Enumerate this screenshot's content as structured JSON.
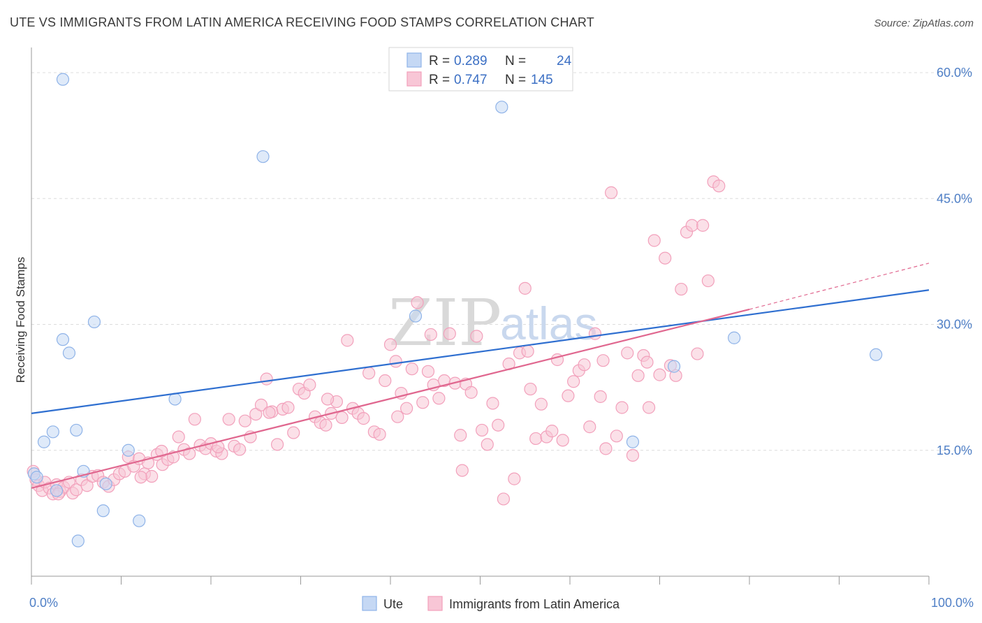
{
  "chart_data": {
    "type": "scatter",
    "title": "UTE VS IMMIGRANTS FROM LATIN AMERICA RECEIVING FOOD STAMPS CORRELATION CHART",
    "source": "Source: ZipAtlas.com",
    "ylabel": "Receiving Food Stamps",
    "xlim": [
      0,
      100
    ],
    "ylim": [
      0,
      63
    ],
    "y_ticks": [
      {
        "value": 15,
        "label": "15.0%"
      },
      {
        "value": 30,
        "label": "30.0%"
      },
      {
        "value": 45,
        "label": "45.0%"
      },
      {
        "value": 60,
        "label": "60.0%"
      }
    ],
    "x_tick_labels": {
      "min": "0.0%",
      "max": "100.0%"
    },
    "x_minor_ticks": [
      0,
      10,
      20,
      30,
      40,
      50,
      60,
      70,
      80,
      90,
      100
    ],
    "watermark": {
      "zip": "ZIP",
      "atlas": "atlas"
    },
    "legend_top": [
      {
        "r_label": "R = ",
        "r_value": "0.289",
        "n_label": "N = ",
        "n_value": "24"
      },
      {
        "r_label": "R = ",
        "r_value": "0.747",
        "n_label": "N = ",
        "n_value": "145"
      }
    ],
    "series": [
      {
        "name": "Ute",
        "color": "#8fb3e8",
        "fill": "#c5d8f4",
        "line_color": "#2f6fd0",
        "trend": {
          "x0": 0,
          "y0": 19.4,
          "x1": 100,
          "y1": 34.1
        },
        "points": [
          [
            3.5,
            59.2
          ],
          [
            52.4,
            55.9
          ],
          [
            25.8,
            50.0
          ],
          [
            3.5,
            28.2
          ],
          [
            7.0,
            30.3
          ],
          [
            4.2,
            26.6
          ],
          [
            42.8,
            31.0
          ],
          [
            94.1,
            26.4
          ],
          [
            78.3,
            28.4
          ],
          [
            71.6,
            25.0
          ],
          [
            16.0,
            21.1
          ],
          [
            2.4,
            17.2
          ],
          [
            1.4,
            16.0
          ],
          [
            5.0,
            17.4
          ],
          [
            10.8,
            15.0
          ],
          [
            67.0,
            16.0
          ],
          [
            0.3,
            12.2
          ],
          [
            0.6,
            11.8
          ],
          [
            2.8,
            10.2
          ],
          [
            5.8,
            12.5
          ],
          [
            8.3,
            11.0
          ],
          [
            8.0,
            7.8
          ],
          [
            12.0,
            6.6
          ],
          [
            5.2,
            4.2
          ]
        ]
      },
      {
        "name": "Immigrants from Latin America",
        "color": "#f2a0bb",
        "fill": "#f8c6d6",
        "line_color": "#e0678f",
        "trend": {
          "x0": 0,
          "y0": 10.5,
          "x1": 80,
          "y1": 31.8
        },
        "trend_dashed": {
          "x0": 80,
          "y0": 31.8,
          "x1": 100,
          "y1": 37.3
        },
        "points": [
          [
            0.2,
            12.5
          ],
          [
            0.5,
            11.5
          ],
          [
            0.8,
            10.8
          ],
          [
            1.2,
            10.2
          ],
          [
            1.5,
            11.2
          ],
          [
            2.0,
            10.5
          ],
          [
            2.4,
            9.8
          ],
          [
            2.8,
            10.9
          ],
          [
            3.2,
            10.1
          ],
          [
            3.6,
            10.6
          ],
          [
            4.2,
            11.2
          ],
          [
            4.6,
            9.9
          ],
          [
            5.0,
            10.3
          ],
          [
            5.6,
            11.5
          ],
          [
            6.2,
            10.8
          ],
          [
            6.8,
            11.9
          ],
          [
            7.4,
            12.0
          ],
          [
            8.0,
            11.2
          ],
          [
            8.6,
            10.7
          ],
          [
            9.2,
            11.5
          ],
          [
            9.8,
            12.2
          ],
          [
            10.4,
            12.5
          ],
          [
            10.8,
            14.2
          ],
          [
            11.4,
            13.1
          ],
          [
            12.0,
            14.0
          ],
          [
            12.6,
            12.2
          ],
          [
            13.0,
            13.5
          ],
          [
            13.4,
            11.9
          ],
          [
            14.0,
            14.5
          ],
          [
            14.6,
            13.3
          ],
          [
            15.2,
            13.9
          ],
          [
            15.8,
            14.2
          ],
          [
            16.4,
            16.6
          ],
          [
            17.0,
            15.1
          ],
          [
            17.6,
            14.6
          ],
          [
            18.2,
            18.7
          ],
          [
            18.8,
            15.6
          ],
          [
            19.4,
            15.2
          ],
          [
            20.0,
            15.8
          ],
          [
            20.6,
            14.9
          ],
          [
            21.2,
            14.6
          ],
          [
            22.0,
            18.7
          ],
          [
            22.6,
            15.5
          ],
          [
            23.2,
            15.1
          ],
          [
            23.8,
            18.5
          ],
          [
            24.4,
            16.6
          ],
          [
            25.0,
            19.3
          ],
          [
            25.6,
            20.4
          ],
          [
            26.2,
            23.5
          ],
          [
            26.8,
            19.6
          ],
          [
            27.4,
            15.7
          ],
          [
            28.0,
            19.9
          ],
          [
            28.6,
            20.1
          ],
          [
            29.2,
            17.1
          ],
          [
            29.8,
            22.3
          ],
          [
            30.4,
            21.8
          ],
          [
            31.0,
            22.8
          ],
          [
            31.6,
            19.0
          ],
          [
            32.2,
            18.3
          ],
          [
            32.8,
            18.0
          ],
          [
            33.4,
            19.4
          ],
          [
            34.0,
            20.8
          ],
          [
            34.6,
            18.9
          ],
          [
            35.2,
            28.1
          ],
          [
            35.8,
            20.0
          ],
          [
            36.4,
            19.4
          ],
          [
            37.0,
            18.8
          ],
          [
            37.6,
            24.2
          ],
          [
            38.2,
            17.2
          ],
          [
            38.8,
            16.9
          ],
          [
            39.4,
            23.3
          ],
          [
            40.0,
            27.6
          ],
          [
            40.6,
            25.6
          ],
          [
            41.2,
            21.8
          ],
          [
            41.8,
            20.0
          ],
          [
            42.4,
            24.7
          ],
          [
            43.0,
            32.6
          ],
          [
            43.6,
            20.7
          ],
          [
            44.2,
            24.4
          ],
          [
            44.8,
            22.8
          ],
          [
            45.4,
            21.2
          ],
          [
            46.0,
            23.3
          ],
          [
            46.6,
            28.9
          ],
          [
            47.2,
            23.0
          ],
          [
            47.8,
            16.8
          ],
          [
            48.4,
            22.9
          ],
          [
            49.0,
            21.9
          ],
          [
            49.6,
            28.6
          ],
          [
            50.2,
            17.4
          ],
          [
            50.8,
            15.7
          ],
          [
            51.4,
            20.6
          ],
          [
            52.0,
            18.0
          ],
          [
            52.6,
            9.2
          ],
          [
            53.2,
            25.3
          ],
          [
            53.8,
            11.6
          ],
          [
            54.4,
            26.6
          ],
          [
            55.0,
            34.3
          ],
          [
            55.6,
            22.3
          ],
          [
            56.2,
            16.4
          ],
          [
            56.8,
            20.5
          ],
          [
            57.4,
            16.6
          ],
          [
            58.0,
            17.3
          ],
          [
            58.6,
            25.8
          ],
          [
            59.2,
            16.2
          ],
          [
            59.8,
            21.5
          ],
          [
            60.4,
            23.2
          ],
          [
            61.0,
            24.5
          ],
          [
            61.6,
            25.2
          ],
          [
            62.2,
            17.8
          ],
          [
            62.8,
            28.9
          ],
          [
            63.4,
            21.4
          ],
          [
            64.0,
            15.2
          ],
          [
            64.6,
            45.7
          ],
          [
            65.2,
            16.7
          ],
          [
            65.8,
            20.1
          ],
          [
            66.4,
            26.6
          ],
          [
            67.0,
            14.4
          ],
          [
            67.6,
            23.9
          ],
          [
            68.2,
            26.3
          ],
          [
            68.8,
            20.1
          ],
          [
            69.4,
            40.0
          ],
          [
            70.0,
            24.0
          ],
          [
            70.6,
            37.9
          ],
          [
            71.2,
            25.1
          ],
          [
            71.8,
            23.9
          ],
          [
            72.4,
            34.2
          ],
          [
            73.0,
            41.0
          ],
          [
            73.6,
            41.8
          ],
          [
            74.2,
            26.5
          ],
          [
            74.8,
            41.8
          ],
          [
            75.4,
            35.2
          ],
          [
            76.0,
            47.0
          ],
          [
            76.6,
            46.5
          ],
          [
            3.0,
            9.8
          ],
          [
            12.2,
            11.8
          ],
          [
            14.5,
            14.9
          ],
          [
            20.8,
            15.4
          ],
          [
            26.5,
            19.5
          ],
          [
            33.0,
            21.1
          ],
          [
            40.8,
            19.0
          ],
          [
            48.0,
            12.6
          ],
          [
            55.3,
            26.8
          ],
          [
            63.7,
            25.7
          ],
          [
            68.6,
            25.5
          ],
          [
            44.5,
            28.8
          ]
        ]
      }
    ],
    "legend_bottom": [
      {
        "label": "Ute"
      },
      {
        "label": "Immigrants from Latin America"
      }
    ]
  }
}
